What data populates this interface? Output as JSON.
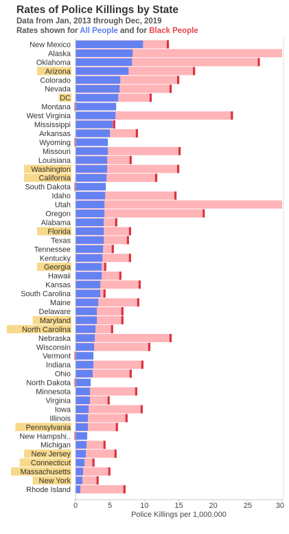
{
  "header": {
    "title": "Rates of Police Killings by State",
    "subtitle_line1": "Data from Jan, 2013 through Dec, 2019",
    "subtitle_line2_prefix": "Rates shown for ",
    "subtitle_line2_all": "All People",
    "subtitle_line2_mid": " and for ",
    "subtitle_line2_black": "Black People"
  },
  "colors": {
    "all_bar": "#6482f2",
    "black_bar": "#ffb4b8",
    "black_marker": "#d9333f",
    "highlight_label_bg": "#f7d98b",
    "axis_line": "#c8c8c8",
    "text": "#333333"
  },
  "chart_data": {
    "type": "bar",
    "orientation": "horizontal",
    "xlabel": "Police Killings per 1,000,000",
    "xlim": [
      0,
      30
    ],
    "xticks": [
      0,
      5,
      10,
      15,
      20,
      25,
      30
    ],
    "grid": false,
    "categories": [
      "New Mexico",
      "Alaska",
      "Oklahoma",
      "Arizona",
      "Colorado",
      "Nevada",
      "DC",
      "Montana",
      "West Virginia",
      "Mississippi",
      "Arkansas",
      "Wyoming",
      "Missouri",
      "Louisiana",
      "Washington",
      "California",
      "South Dakota",
      "Idaho",
      "Utah",
      "Oregon",
      "Alabama",
      "Florida",
      "Texas",
      "Tennessee",
      "Kentucky",
      "Georgia",
      "Hawaii",
      "Kansas",
      "South Carolina",
      "Maine",
      "Delaware",
      "Maryland",
      "North Carolina",
      "Nebraska",
      "Wisconsin",
      "Vermont",
      "Indiana",
      "Ohio",
      "North Dakota",
      "Minnesota",
      "Virginia",
      "Iowa",
      "Illinois",
      "Pennsylvania",
      "New Hampshi..",
      "Michigan",
      "New Jersey",
      "Connecticut",
      "Massachusetts",
      "New York",
      "Rhode Island"
    ],
    "highlighted": [
      "Arizona",
      "DC",
      "Washington",
      "California",
      "Florida",
      "Georgia",
      "Maryland",
      "North Carolina",
      "Pennsylvania",
      "New Jersey",
      "Connecticut",
      "Massachusetts",
      "New York"
    ],
    "series": [
      {
        "name": "All People",
        "values": [
          9.8,
          8.3,
          8.2,
          7.7,
          6.5,
          6.4,
          6.2,
          5.9,
          5.8,
          5.4,
          5.0,
          4.7,
          4.7,
          4.6,
          4.6,
          4.5,
          4.4,
          4.3,
          4.2,
          4.2,
          4.1,
          4.1,
          4.1,
          4.0,
          3.9,
          3.8,
          3.8,
          3.6,
          3.6,
          3.3,
          3.1,
          3.1,
          2.9,
          2.8,
          2.7,
          2.6,
          2.6,
          2.5,
          2.2,
          2.1,
          2.1,
          1.9,
          1.8,
          1.8,
          1.7,
          1.6,
          1.5,
          1.3,
          1.1,
          1.0,
          0.7
        ]
      },
      {
        "name": "Black People",
        "values": [
          13.4,
          31.0,
          26.6,
          17.2,
          14.9,
          13.8,
          10.9,
          0.0,
          22.7,
          5.6,
          8.9,
          0.0,
          15.1,
          8.0,
          14.9,
          11.7,
          0.0,
          14.5,
          31.0,
          18.6,
          5.9,
          7.9,
          7.6,
          5.4,
          7.9,
          4.3,
          6.5,
          9.3,
          4.2,
          9.1,
          6.8,
          6.8,
          5.3,
          13.8,
          10.7,
          0.0,
          9.7,
          8.0,
          0.0,
          8.8,
          4.8,
          9.6,
          7.4,
          6.0,
          0.0,
          4.2,
          5.8,
          2.6,
          4.9,
          3.2,
          7.1
        ]
      }
    ]
  }
}
